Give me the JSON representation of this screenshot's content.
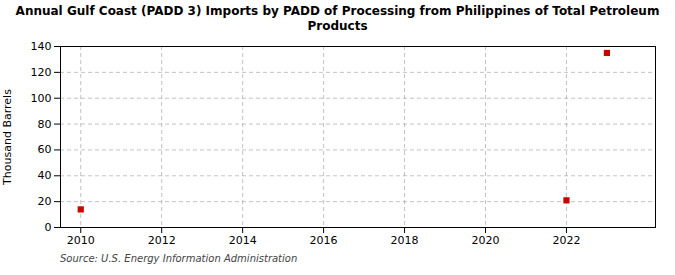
{
  "chart_data": {
    "type": "scatter",
    "title": "Annual Gulf Coast (PADD 3) Imports by PADD of Processing from Philippines of Total Petroleum\nProducts",
    "ylabel": "Thousand Barrels",
    "source": "Source: U.S. Energy Information Administration",
    "x": [
      2010,
      2022,
      2023
    ],
    "values": [
      14,
      21,
      135
    ],
    "color": "#cc0000",
    "marker": "square",
    "xlim": [
      2009.5,
      2024.2
    ],
    "ylim": [
      0,
      140
    ],
    "xticks": [
      2010,
      2012,
      2014,
      2016,
      2018,
      2020,
      2022
    ],
    "yticks": [
      0,
      20,
      40,
      60,
      80,
      100,
      120,
      140
    ],
    "grid": true
  }
}
